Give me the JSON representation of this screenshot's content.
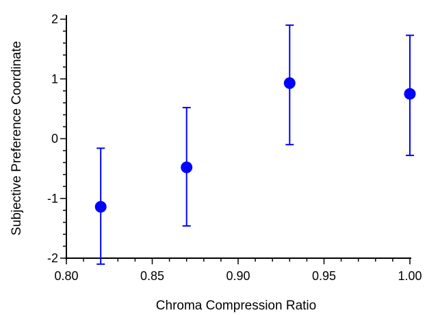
{
  "chart_data": {
    "type": "scatter",
    "title": "",
    "xlabel": "Chroma Compression Ratio",
    "ylabel": "Subjective Preference Coordinate",
    "xlim": [
      0.8,
      1.0
    ],
    "ylim": [
      -2,
      2
    ],
    "x_ticks": [
      "0.80",
      "0.85",
      "0.90",
      "0.95",
      "1.00"
    ],
    "x_tick_values": [
      0.8,
      0.85,
      0.9,
      0.95,
      1.0
    ],
    "y_ticks": [
      "-2",
      "-1",
      "0",
      "1",
      "2"
    ],
    "y_tick_values": [
      -2,
      -1,
      0,
      1,
      2
    ],
    "grid": false,
    "series": [
      {
        "color": "#0000ff",
        "points": [
          {
            "x": 0.82,
            "y": -1.14,
            "err_low": -2.1,
            "err_high": -0.16
          },
          {
            "x": 0.87,
            "y": -0.48,
            "err_low": -1.46,
            "err_high": 0.52
          },
          {
            "x": 0.93,
            "y": 0.93,
            "err_low": -0.1,
            "err_high": 1.9
          },
          {
            "x": 1.0,
            "y": 0.75,
            "err_low": -0.28,
            "err_high": 1.73
          }
        ]
      }
    ]
  }
}
